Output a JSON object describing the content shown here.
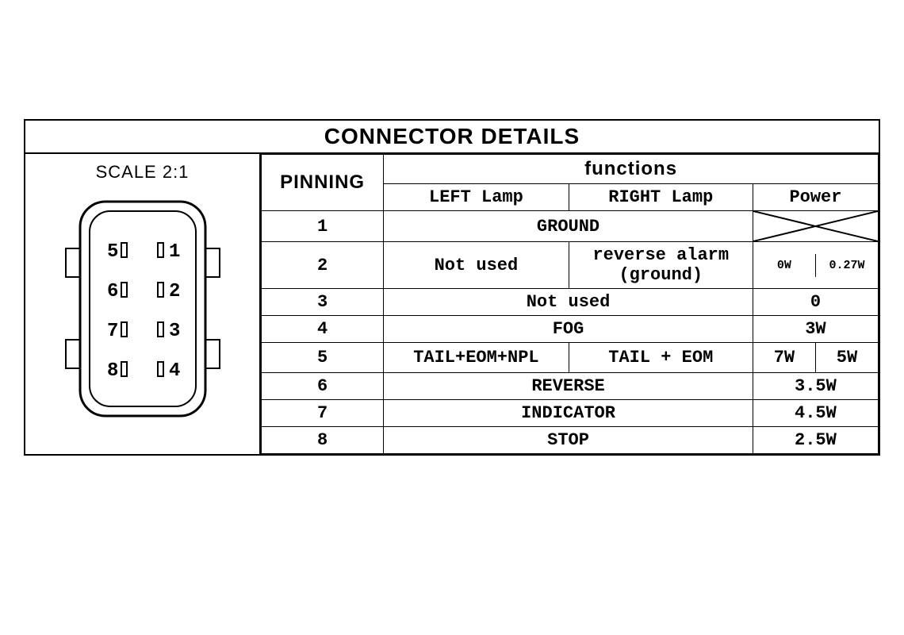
{
  "title": "CONNECTOR DETAILS",
  "scale_label": "SCALE 2:1",
  "headers": {
    "pinning": "PINNING",
    "functions": "functions",
    "left_lamp": "LEFT Lamp",
    "right_lamp": "RIGHT Lamp",
    "power": "Power"
  },
  "connector": {
    "pins_left": [
      "5",
      "6",
      "7",
      "8"
    ],
    "pins_right": [
      "1",
      "2",
      "3",
      "4"
    ],
    "outer_stroke": "#000000",
    "inner_stroke": "#000000",
    "stroke_width_outer": 3,
    "stroke_width_inner": 2
  },
  "rows": [
    {
      "pin": "1",
      "func_span": true,
      "func": "GROUND",
      "power_cross": true
    },
    {
      "pin": "2",
      "left": "Not used",
      "right": "reverse alarm\n(ground)",
      "power_split": true,
      "power_l": "0W",
      "power_r": "0.27W"
    },
    {
      "pin": "3",
      "func_span": true,
      "func": "Not used",
      "power": "0"
    },
    {
      "pin": "4",
      "func_span": true,
      "func": "FOG",
      "power": "3W"
    },
    {
      "pin": "5",
      "left": "TAIL+EOM+NPL",
      "right": "TAIL + EOM",
      "power_split": true,
      "power_l": "7W",
      "power_r": "5W"
    },
    {
      "pin": "6",
      "func_span": true,
      "func": "REVERSE",
      "power": "3.5W"
    },
    {
      "pin": "7",
      "func_span": true,
      "func": "INDICATOR",
      "power": "4.5W"
    },
    {
      "pin": "8",
      "func_span": true,
      "func": "STOP",
      "power": "2.5W"
    }
  ],
  "style": {
    "background": "#ffffff",
    "border_color": "#000000",
    "title_fontsize": 28,
    "header_fontsize": 24,
    "cell_fontsize": 22,
    "small_fontsize": 15,
    "font_mono": "Courier New",
    "font_sans": "Arial"
  }
}
